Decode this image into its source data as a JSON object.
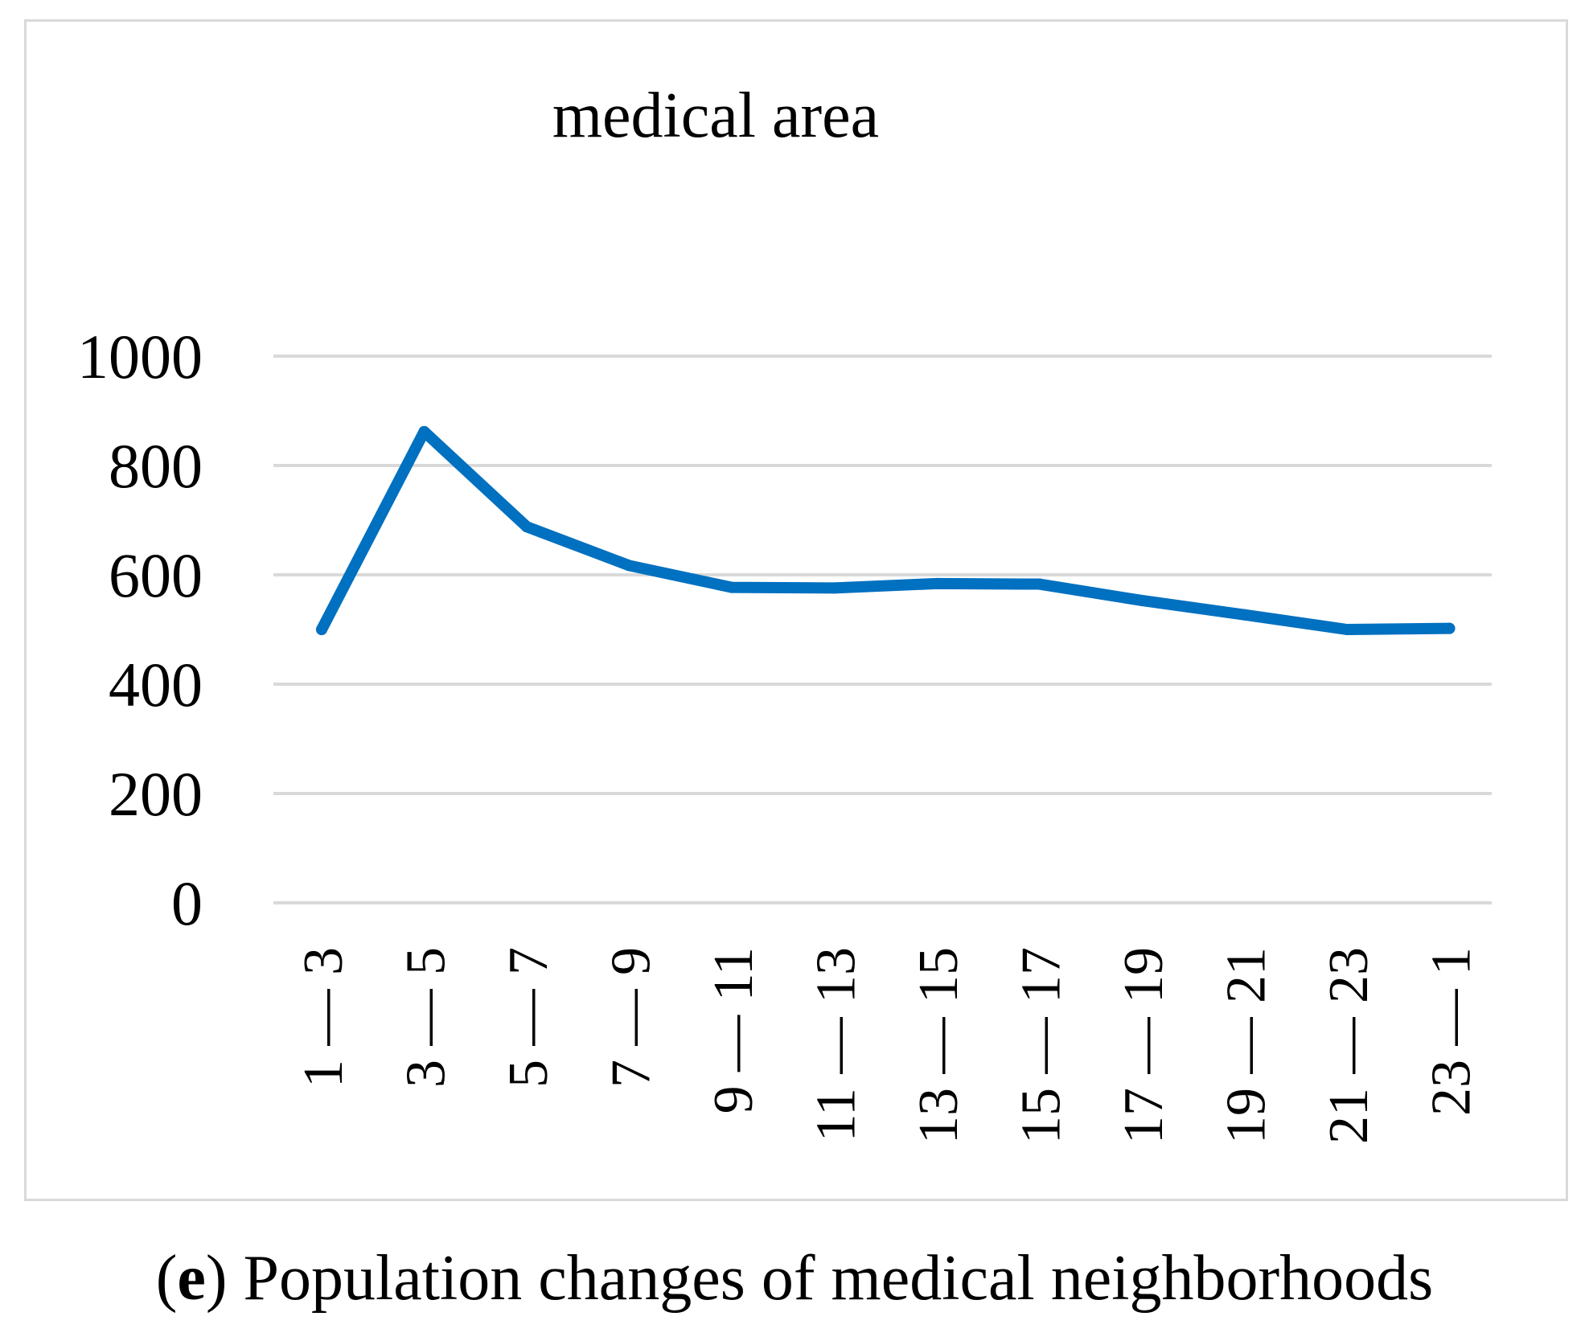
{
  "chart_data": {
    "type": "line",
    "title": "medical area",
    "categories": [
      "1 — 3",
      "3 — 5",
      "5 — 7",
      "7 — 9",
      "9 — 11",
      "11 — 13",
      "13 — 15",
      "15 — 17",
      "17 — 19",
      "19 — 21",
      "21 — 23",
      "23 — 1"
    ],
    "series": [
      {
        "name": "medical area",
        "color": "#0070c0",
        "values": [
          500,
          862,
          688,
          617,
          577,
          576,
          584,
          583,
          553,
          527,
          500,
          502
        ]
      }
    ],
    "yticks": [
      0,
      200,
      400,
      600,
      800,
      1000
    ],
    "ylim": [
      0,
      1000
    ],
    "xlabel": "",
    "ylabel": "",
    "grid": true,
    "legend": "none"
  },
  "caption": {
    "open_paren": "(",
    "label": "e",
    "close_paren": ")",
    "text": " Population changes of medical neighborhoods"
  },
  "colors": {
    "line": "#0070c0",
    "grid": "#d9d9d9",
    "frame": "#d9d9d9",
    "text": "#000000"
  }
}
